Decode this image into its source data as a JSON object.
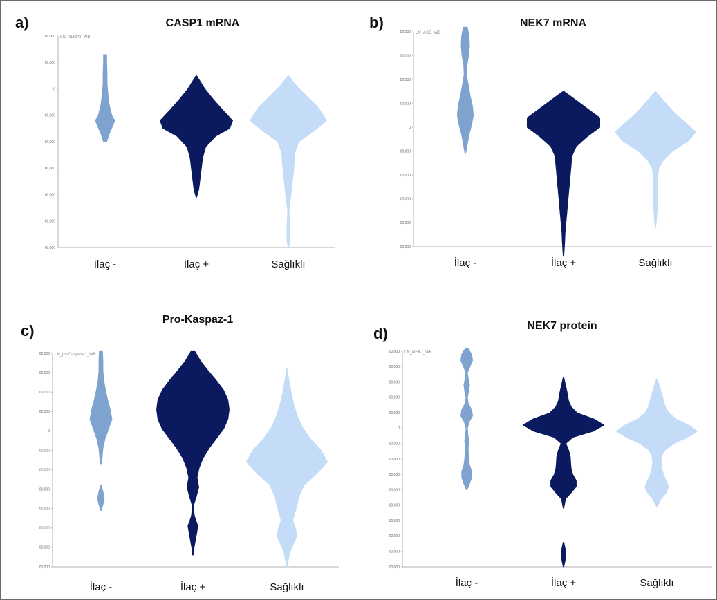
{
  "figure": {
    "panels": [
      {
        "letter": "a)",
        "title": "CASP1 mRNA",
        "variable": "LN_NLRP3_WB"
      },
      {
        "letter": "b)",
        "title": "NEK7 mRNA",
        "variable": "LN_ASC_WB"
      },
      {
        "letter": "c)",
        "title": "Pro-Kaspaz-1",
        "variable": "LN_proCaspase1_WB"
      },
      {
        "letter": "d)",
        "title": "NEK7 protein",
        "variable": "LN_NEK7_WB"
      }
    ]
  },
  "colors": {
    "ilac_minus": "#7fa3cf",
    "ilac_plus": "#0b1a5e",
    "saglikli": "#c4dcf8",
    "axis": "#b0b0b0"
  },
  "chart_data": [
    {
      "type": "violin",
      "title": "CASP1 mRNA",
      "ylabel": "LN_NLRP3_WB",
      "categories": [
        "İlaç -",
        "İlaç +",
        "Sağlıklı"
      ],
      "ytick_labels": [
        "00,000",
        "00,000",
        "0",
        "00,000",
        "00,000",
        "00,000",
        "00,000",
        "00,000",
        "00,000"
      ],
      "ylim": [
        0,
        8
      ],
      "series": [
        {
          "category": "İlaç -",
          "y": [
            7.3,
            7.0,
            6.6,
            6.2,
            5.8,
            5.4,
            5.0,
            4.8,
            4.6,
            4.3,
            4.0
          ],
          "width": [
            0.04,
            0.04,
            0.05,
            0.05,
            0.07,
            0.1,
            0.16,
            0.23,
            0.18,
            0.1,
            0.04
          ]
        },
        {
          "category": "İlaç +",
          "y": [
            6.5,
            6.0,
            5.6,
            5.2,
            4.8,
            4.5,
            4.2,
            3.8,
            3.4,
            3.0,
            2.6,
            2.2,
            1.9
          ],
          "width": [
            0.01,
            0.2,
            0.4,
            0.62,
            0.85,
            0.78,
            0.45,
            0.22,
            0.15,
            0.12,
            0.09,
            0.06,
            0.01
          ]
        },
        {
          "category": "Sağlıklı",
          "y": [
            6.5,
            6.1,
            5.7,
            5.3,
            4.8,
            4.4,
            4.0,
            3.6,
            3.2,
            2.8,
            2.4,
            1.9,
            1.4,
            1.0,
            0.6,
            0.2,
            0.0
          ],
          "width": [
            0.01,
            0.2,
            0.45,
            0.7,
            0.9,
            0.6,
            0.25,
            0.16,
            0.14,
            0.12,
            0.09,
            0.06,
            0.02,
            0.03,
            0.04,
            0.03,
            0.01
          ]
        }
      ]
    },
    {
      "type": "violin",
      "title": "NEK7 mRNA",
      "ylabel": "LN_ASC_WB",
      "categories": [
        "İlaç -",
        "İlaç +",
        "Sağlıklı"
      ],
      "ytick_labels": [
        "00,000",
        "00,000",
        "00,000",
        "00,000",
        "0",
        "00,000",
        "00,000",
        "00,000",
        "00,000",
        "00,000"
      ],
      "ylim": [
        0,
        9
      ],
      "series": [
        {
          "category": "İlaç -",
          "y": [
            9.2,
            8.8,
            8.4,
            8.0,
            7.6,
            7.2,
            6.8,
            6.3,
            5.9,
            5.5,
            5.1,
            4.7,
            4.3,
            3.9
          ],
          "width": [
            0.05,
            0.09,
            0.1,
            0.08,
            0.04,
            0.03,
            0.07,
            0.12,
            0.17,
            0.19,
            0.15,
            0.09,
            0.05,
            0.01
          ]
        },
        {
          "category": "İlaç +",
          "y": [
            6.5,
            6.2,
            5.8,
            5.4,
            5.0,
            4.6,
            4.2,
            3.8,
            3.4,
            3.0,
            2.6,
            2.2,
            1.8,
            1.4,
            1.0,
            0.6,
            0.2,
            -0.4
          ],
          "width": [
            0.02,
            0.25,
            0.55,
            0.85,
            0.85,
            0.55,
            0.3,
            0.2,
            0.18,
            0.16,
            0.14,
            0.12,
            0.1,
            0.08,
            0.06,
            0.04,
            0.03,
            0.01
          ]
        },
        {
          "category": "Sağlıklı",
          "y": [
            6.5,
            6.1,
            5.6,
            5.2,
            4.8,
            4.4,
            4.0,
            3.6,
            3.3,
            3.0,
            2.7,
            2.4,
            2.1,
            1.8,
            1.5,
            1.2,
            0.8
          ],
          "width": [
            0.01,
            0.2,
            0.45,
            0.7,
            0.95,
            0.75,
            0.4,
            0.18,
            0.08,
            0.06,
            0.05,
            0.05,
            0.05,
            0.05,
            0.04,
            0.03,
            0.01
          ]
        }
      ]
    },
    {
      "type": "violin",
      "title": "Pro-Kaspaz-1",
      "ylabel": "LN_proCaspase1_WB",
      "categories": [
        "İlaç -",
        "İlaç +",
        "Sağlıklı"
      ],
      "ytick_labels": [
        "00,000",
        "00,000",
        "00,000",
        "00,000",
        "0",
        "00,000",
        "00,000",
        "00,000",
        "00,000",
        "00,000",
        "00,000",
        "00,000"
      ],
      "ylim": [
        0,
        11
      ],
      "series": [
        {
          "category": "İlaç -",
          "y": [
            11.1,
            10.6,
            10.1,
            9.6,
            9.1,
            8.6,
            8.1,
            7.6,
            7.1,
            6.6,
            6.1,
            5.6,
            5.3
          ],
          "width": [
            0.04,
            0.05,
            0.05,
            0.07,
            0.11,
            0.16,
            0.22,
            0.26,
            0.18,
            0.1,
            0.05,
            0.03,
            0.01
          ]
        },
        {
          "category": "İlaç -",
          "y": [
            4.2,
            3.8,
            3.5,
            3.2,
            2.9
          ],
          "width": [
            0.01,
            0.06,
            0.08,
            0.05,
            0.01
          ]
        },
        {
          "category": "İlaç +",
          "y": [
            11.1,
            10.6,
            10.1,
            9.6,
            9.1,
            8.6,
            8.1,
            7.6,
            7.1,
            6.6,
            6.1,
            5.6,
            5.1,
            4.6,
            4.1,
            3.6,
            3.1,
            2.6,
            2.1,
            1.6,
            1.0,
            0.6
          ],
          "width": [
            0.05,
            0.18,
            0.36,
            0.55,
            0.72,
            0.82,
            0.85,
            0.82,
            0.72,
            0.55,
            0.38,
            0.24,
            0.15,
            0.1,
            0.14,
            0.08,
            0.01,
            0.04,
            0.12,
            0.08,
            0.03,
            0.01
          ]
        },
        {
          "category": "Sağlıklı",
          "y": [
            10.2,
            9.6,
            9.0,
            8.4,
            7.8,
            7.2,
            6.6,
            6.0,
            5.4,
            4.8,
            4.2,
            3.6,
            3.0,
            2.4,
            2.0,
            1.6,
            1.2,
            0.8,
            0.4,
            0.0
          ],
          "width": [
            0.01,
            0.05,
            0.1,
            0.16,
            0.24,
            0.36,
            0.55,
            0.8,
            0.95,
            0.7,
            0.4,
            0.28,
            0.22,
            0.14,
            0.2,
            0.24,
            0.16,
            0.08,
            0.04,
            0.01
          ]
        }
      ]
    },
    {
      "type": "violin",
      "title": "NEK7 protein",
      "ylabel": "LN_NEK7_WB",
      "categories": [
        "İlaç -",
        "İlaç +",
        "Sağlıklı"
      ],
      "ytick_labels": [
        "00,000",
        "00,000",
        "00,000",
        "00,000",
        "00,000",
        "0",
        "00,000",
        "00,000",
        "00,000",
        "00,000",
        "00,000",
        "00,000",
        "00,000",
        "00,000",
        "00,000"
      ],
      "ylim": [
        0,
        14
      ],
      "series": [
        {
          "category": "İlaç -",
          "y": [
            14.2,
            13.8,
            13.4,
            13.0,
            12.6,
            12.2,
            11.8,
            11.4,
            11.0,
            10.6,
            10.2,
            9.8,
            9.4,
            9.0,
            8.6,
            8.2,
            7.8,
            7.4,
            7.0,
            6.6,
            6.2,
            5.8,
            5.4,
            5.0
          ],
          "width": [
            0.03,
            0.12,
            0.14,
            0.08,
            0.02,
            0.04,
            0.07,
            0.05,
            0.02,
            0.04,
            0.12,
            0.14,
            0.06,
            0.02,
            0.03,
            0.05,
            0.04,
            0.04,
            0.05,
            0.07,
            0.12,
            0.12,
            0.07,
            0.01
          ]
        },
        {
          "category": "İlaç +",
          "y": [
            12.3,
            11.8,
            11.3,
            10.8,
            10.4,
            10.0,
            9.6,
            9.2,
            8.8,
            8.4,
            8.0,
            7.6,
            7.2,
            6.8,
            6.4,
            6.0,
            5.6,
            5.2,
            4.8,
            4.4,
            3.8
          ],
          "width": [
            0.01,
            0.05,
            0.09,
            0.12,
            0.18,
            0.32,
            0.72,
            0.95,
            0.7,
            0.22,
            0.06,
            0.12,
            0.16,
            0.17,
            0.18,
            0.22,
            0.3,
            0.3,
            0.18,
            0.05,
            0.01
          ]
        },
        {
          "category": "İlaç +",
          "y": [
            1.6,
            1.2,
            0.8,
            0.4,
            0.0
          ],
          "width": [
            0.01,
            0.04,
            0.06,
            0.04,
            0.01
          ]
        },
        {
          "category": "Sağlıklı",
          "y": [
            12.2,
            11.6,
            11.0,
            10.4,
            10.0,
            9.6,
            9.2,
            8.8,
            8.4,
            8.0,
            7.6,
            7.2,
            6.8,
            6.4,
            6.0,
            5.6,
            5.2,
            4.8,
            4.4,
            3.9
          ],
          "width": [
            0.01,
            0.08,
            0.14,
            0.2,
            0.28,
            0.45,
            0.75,
            0.95,
            0.72,
            0.4,
            0.2,
            0.12,
            0.1,
            0.12,
            0.16,
            0.22,
            0.28,
            0.22,
            0.1,
            0.01
          ]
        }
      ]
    }
  ]
}
